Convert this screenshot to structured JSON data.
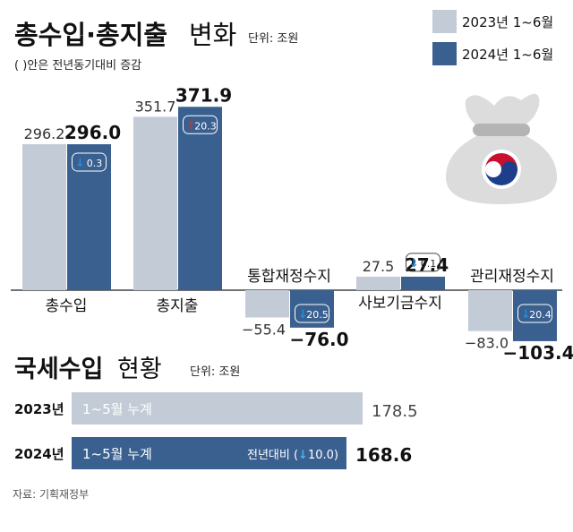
{
  "header": {
    "title_bold": "총수입·총지출",
    "title_light": "변화",
    "unit": "단위: 조원",
    "note": "( )안은 전년동기대비 증감"
  },
  "legend": [
    {
      "label": "2023년 1~6월",
      "color": "#c3ccd6"
    },
    {
      "label": "2024년 1~6월",
      "color": "#3a6090"
    }
  ],
  "icon": {
    "name": "money-bag-icon",
    "bag_color": "#dcdcdc",
    "tie_color": "#b4b4b4",
    "taeguk_red": "#c8102e",
    "taeguk_blue": "#1d3f8b"
  },
  "chart_data": [
    {
      "type": "bar",
      "categories": [
        "총수입",
        "총지출",
        "통합재정수지",
        "사보기금수지",
        "관리재정수지"
      ],
      "series": [
        {
          "name": "2023년 1~6월",
          "values": [
            296.2,
            351.7,
            -55.4,
            27.5,
            -83.0
          ]
        },
        {
          "name": "2024년 1~6월",
          "values": [
            296.0,
            371.9,
            -76.0,
            27.4,
            -103.4
          ]
        }
      ],
      "value_labels_2023": [
        "296.2",
        "351.7",
        "−55.4",
        "27.5",
        "−83.0"
      ],
      "value_labels_2024": [
        "296.0",
        "371.9",
        "−76.0",
        "27.4",
        "−103.4"
      ],
      "change": [
        {
          "arrow": "↓",
          "value": "0.3",
          "direction": "down"
        },
        {
          "arrow": "↑",
          "value": "20.3",
          "direction": "up"
        },
        {
          "arrow": "↓",
          "value": "20.5",
          "direction": "down"
        },
        {
          "arrow": "↓",
          "value": "0.1",
          "direction": "down"
        },
        {
          "arrow": "↓",
          "value": "20.4",
          "direction": "down"
        }
      ],
      "colors": {
        "2023": "#c3ccd6",
        "2024": "#3a6090",
        "down_arrow": "#1f8fd9",
        "up_arrow": "#c0392b"
      },
      "ylim": [
        -110,
        380
      ],
      "grid": false
    },
    {
      "type": "bar",
      "orientation": "horizontal",
      "title_bold": "국세수입",
      "title_light": "현황",
      "unit": "단위: 조원",
      "categories": [
        "2023년",
        "2024년"
      ],
      "values": [
        178.5,
        168.6
      ],
      "value_labels": [
        "178.5",
        "168.6"
      ],
      "inner_label": "1~5월 누계",
      "change_prefix": "전년대비 (",
      "change_arrow": "↓",
      "change_value": "10.0",
      "change_suffix": ")",
      "colors": {
        "2023": "#c3ccd6",
        "2024": "#3a6090"
      },
      "xlim": [
        0,
        178.5
      ]
    }
  ],
  "source": "자료: 기획재정부"
}
